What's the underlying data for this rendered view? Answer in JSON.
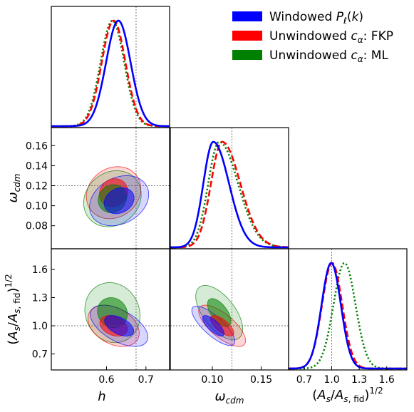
{
  "chart_data": {
    "type": "corner-triangle-plot",
    "legend_position": "top-right",
    "legend": [
      {
        "label": "Windowed P_ℓ(k)",
        "color": "#0000ff",
        "linestyle": "solid"
      },
      {
        "label": "Unwindowed c_α: FKP",
        "color": "#ff0000",
        "linestyle": "dashed"
      },
      {
        "label": "Unwindowed c_α: ML",
        "color": "#008000",
        "linestyle": "dotted"
      }
    ],
    "parameters": [
      {
        "key": "h",
        "axis_label": "h",
        "range": [
          0.46,
          0.76
        ],
        "ticks": [
          0.6,
          0.7
        ],
        "tick_labels": [
          "0.6",
          "0.7"
        ],
        "fiducial": 0.675
      },
      {
        "key": "omega_cdm",
        "axis_label": "ω_cdm",
        "range": [
          0.057,
          0.178
        ],
        "ticks": [
          0.1,
          0.15
        ],
        "tick_labels": [
          "0.10",
          "0.15"
        ],
        "ticks_y": [
          0.08,
          0.1,
          0.12,
          0.14,
          0.16
        ],
        "tick_labels_y": [
          "0.08",
          "0.10",
          "0.12",
          "0.14",
          "0.16"
        ],
        "fiducial": 0.12
      },
      {
        "key": "As_ratio",
        "axis_label": "(A_s/A_s,fid)^1/2",
        "range": [
          0.53,
          1.82
        ],
        "ticks": [
          0.7,
          1.0,
          1.3,
          1.6
        ],
        "tick_labels": [
          "0.7",
          "1.0",
          "1.3",
          "1.6"
        ],
        "fiducial": 1.0
      }
    ],
    "marginals_1d": {
      "h": [
        {
          "series": "Windowed P_ℓ(k)",
          "mean": 0.63,
          "sigma": 0.031
        },
        {
          "series": "Unwindowed c_α: FKP",
          "mean": 0.618,
          "sigma": 0.03
        },
        {
          "series": "Unwindowed c_α: ML",
          "mean": 0.615,
          "sigma": 0.03
        }
      ],
      "omega_cdm": [
        {
          "series": "Windowed P_ℓ(k)",
          "mean": 0.101,
          "sigma": 0.0115,
          "skew": 0.013
        },
        {
          "series": "Unwindowed c_α: FKP",
          "mean": 0.11,
          "sigma": 0.013,
          "skew": 0.016
        },
        {
          "series": "Unwindowed c_α: ML",
          "mean": 0.107,
          "sigma": 0.013,
          "skew": 0.018
        }
      ],
      "As_ratio": [
        {
          "series": "Windowed P_ℓ(k)",
          "mean": 0.995,
          "sigma": 0.105
        },
        {
          "series": "Unwindowed c_α: FKP",
          "mean": 1.005,
          "sigma": 0.11
        },
        {
          "series": "Unwindowed c_α: ML",
          "mean": 1.14,
          "sigma": 0.12
        }
      ]
    },
    "contours_2d": {
      "h_omega_cdm": [
        {
          "series": "Unwindowed c_α: FKP",
          "center": [
            0.618,
            0.113
          ],
          "inner": [
            0.036,
            0.014,
            0.1
          ],
          "outer": [
            0.069,
            0.026,
            0.15
          ]
        },
        {
          "series": "Unwindowed c_α: ML",
          "center": [
            0.615,
            0.107
          ],
          "inner": [
            0.036,
            0.014,
            0.1
          ],
          "outer": [
            0.073,
            0.028,
            0.15
          ]
        },
        {
          "series": "Windowed P_ℓ(k)",
          "center": [
            0.632,
            0.105
          ],
          "inner": [
            0.038,
            0.013,
            0.2
          ],
          "outer": [
            0.075,
            0.025,
            0.25
          ]
        }
      ],
      "h_As_ratio": [
        {
          "series": "Unwindowed c_α: ML",
          "center": [
            0.615,
            1.14
          ],
          "inner": [
            0.038,
            0.16,
            -0.1
          ],
          "outer": [
            0.07,
            0.32,
            -0.1
          ]
        },
        {
          "series": "Unwindowed c_α: FKP",
          "center": [
            0.618,
            1.0
          ],
          "inner": [
            0.035,
            0.11,
            -0.3
          ],
          "outer": [
            0.065,
            0.22,
            -0.35
          ]
        },
        {
          "series": "Windowed P_ℓ(k)",
          "center": [
            0.632,
            1.0
          ],
          "inner": [
            0.037,
            0.11,
            -0.5
          ],
          "outer": [
            0.073,
            0.22,
            -0.55
          ]
        }
      ],
      "omega_cdm_As_ratio": [
        {
          "series": "Unwindowed c_α: ML",
          "center": [
            0.107,
            1.14
          ],
          "inner": [
            0.012,
            0.15,
            -0.6
          ],
          "outer": [
            0.024,
            0.29,
            -0.6
          ]
        },
        {
          "series": "Unwindowed c_α: FKP",
          "center": [
            0.11,
            1.0
          ],
          "inner": [
            0.012,
            0.11,
            -0.7
          ],
          "outer": [
            0.024,
            0.22,
            -0.72
          ]
        },
        {
          "series": "Windowed P_ℓ(k)",
          "center": [
            0.101,
            1.0
          ],
          "inner": [
            0.011,
            0.11,
            -0.75
          ],
          "outer": [
            0.022,
            0.21,
            -0.78
          ]
        }
      ]
    }
  }
}
